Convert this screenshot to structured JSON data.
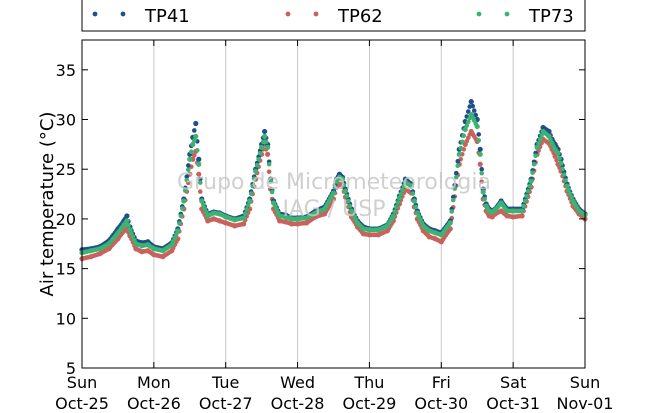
{
  "chart_data": {
    "type": "scatter",
    "title": "",
    "xlabel": "",
    "ylabel": "Air temperature (°C)",
    "ylim": [
      5,
      38
    ],
    "yticks": [
      5,
      10,
      15,
      20,
      25,
      30,
      35
    ],
    "xlim": [
      "2015-10-25 00:00",
      "2015-11-01 00:00"
    ],
    "xticks": [
      {
        "day": "Sun",
        "date": "Oct-25"
      },
      {
        "day": "Mon",
        "date": "Oct-26"
      },
      {
        "day": "Tue",
        "date": "Oct-27"
      },
      {
        "day": "Wed",
        "date": "Oct-28"
      },
      {
        "day": "Thu",
        "date": "Oct-29"
      },
      {
        "day": "Fri",
        "date": "Oct-30"
      },
      {
        "day": "Sat",
        "date": "Oct-31"
      },
      {
        "day": "Sun",
        "date": "Nov-01"
      }
    ],
    "grid": "vertical",
    "legend_position": "top",
    "watermark": [
      "Grupo de Micrometeorologia",
      "IAG / USP"
    ],
    "x_unit": "hours since 2015-10-25 00:00",
    "series": [
      {
        "name": "TP41",
        "color": "#1f4e8c",
        "x": [
          0,
          3,
          6,
          9,
          12,
          14,
          15,
          16,
          18,
          20,
          22,
          24,
          27,
          30,
          32,
          34,
          36,
          37,
          38,
          39,
          40,
          42,
          44,
          46,
          48,
          51,
          54,
          56,
          58,
          60,
          61,
          62,
          63,
          64,
          66,
          68,
          70,
          72,
          75,
          78,
          81,
          84,
          85,
          86,
          87,
          88,
          90,
          92,
          94,
          96,
          99,
          102,
          104,
          106,
          108,
          110,
          111,
          112,
          114,
          116,
          118,
          120,
          123,
          126,
          128,
          130,
          132,
          133,
          134,
          135,
          136,
          137,
          138,
          140,
          142,
          144,
          147,
          150,
          152,
          154,
          156,
          157,
          158,
          159,
          160,
          162,
          164,
          166,
          168
        ],
        "y": [
          16.9,
          17.0,
          17.2,
          17.8,
          19.0,
          19.8,
          20.3,
          19.2,
          17.8,
          17.6,
          17.7,
          17.2,
          17.0,
          17.6,
          19.0,
          22.0,
          26.5,
          28.2,
          29.6,
          26.0,
          22.0,
          20.5,
          20.7,
          20.6,
          20.3,
          20.0,
          20.3,
          22.0,
          25.0,
          27.5,
          28.8,
          27.5,
          24.0,
          21.8,
          20.5,
          20.4,
          20.1,
          20.1,
          20.2,
          20.8,
          21.2,
          22.8,
          24.0,
          24.5,
          24.2,
          23.0,
          21.0,
          19.8,
          19.2,
          19.0,
          19.0,
          19.4,
          20.5,
          22.3,
          24.0,
          23.5,
          22.0,
          20.8,
          19.5,
          19.0,
          18.8,
          18.6,
          19.8,
          27.0,
          29.8,
          31.8,
          30.0,
          27.0,
          23.0,
          21.5,
          21.0,
          20.8,
          21.0,
          21.8,
          21.0,
          21.0,
          21.0,
          24.0,
          27.5,
          29.2,
          28.8,
          28.0,
          27.5,
          27.0,
          26.0,
          23.5,
          22.0,
          21.0,
          20.5
        ]
      },
      {
        "name": "TP62",
        "color": "#c9625c",
        "x": [
          0,
          3,
          6,
          9,
          12,
          14,
          15,
          16,
          18,
          20,
          22,
          24,
          27,
          30,
          32,
          34,
          36,
          37,
          38,
          39,
          40,
          42,
          44,
          46,
          48,
          51,
          54,
          56,
          58,
          60,
          61,
          62,
          63,
          64,
          66,
          68,
          70,
          72,
          75,
          78,
          81,
          84,
          85,
          86,
          87,
          88,
          90,
          92,
          94,
          96,
          99,
          102,
          104,
          106,
          108,
          110,
          111,
          112,
          114,
          116,
          118,
          120,
          123,
          126,
          128,
          130,
          132,
          133,
          134,
          135,
          136,
          137,
          138,
          140,
          142,
          144,
          147,
          150,
          152,
          154,
          156,
          157,
          158,
          159,
          160,
          162,
          164,
          166,
          168
        ],
        "y": [
          16.0,
          16.2,
          16.5,
          17.0,
          18.0,
          18.8,
          19.0,
          18.3,
          17.0,
          16.7,
          16.8,
          16.4,
          16.2,
          16.8,
          18.0,
          21.0,
          24.5,
          26.0,
          26.8,
          24.5,
          21.0,
          19.8,
          20.0,
          19.8,
          19.6,
          19.3,
          19.5,
          21.0,
          24.0,
          26.5,
          27.5,
          26.5,
          23.0,
          21.0,
          19.8,
          19.7,
          19.5,
          19.5,
          19.6,
          20.2,
          20.5,
          22.0,
          23.2,
          23.5,
          23.3,
          22.2,
          20.2,
          19.2,
          18.5,
          18.4,
          18.4,
          18.8,
          19.8,
          21.5,
          23.0,
          22.6,
          21.2,
          20.0,
          18.8,
          18.2,
          18.0,
          17.7,
          19.0,
          25.5,
          27.5,
          28.8,
          27.8,
          25.5,
          22.0,
          20.8,
          20.3,
          20.2,
          20.5,
          20.8,
          20.3,
          20.2,
          20.3,
          23.2,
          26.5,
          28.0,
          27.6,
          27.0,
          26.3,
          25.5,
          24.8,
          22.8,
          21.3,
          20.5,
          20.0
        ]
      },
      {
        "name": "TP73",
        "color": "#3cb371",
        "x": [
          0,
          3,
          6,
          9,
          12,
          14,
          15,
          16,
          18,
          20,
          22,
          24,
          27,
          30,
          32,
          34,
          36,
          37,
          38,
          39,
          40,
          42,
          44,
          46,
          48,
          51,
          54,
          56,
          58,
          60,
          61,
          62,
          63,
          64,
          66,
          68,
          70,
          72,
          75,
          78,
          81,
          84,
          85,
          86,
          87,
          88,
          90,
          92,
          94,
          96,
          99,
          102,
          104,
          106,
          108,
          110,
          111,
          112,
          114,
          116,
          118,
          120,
          123,
          126,
          128,
          130,
          132,
          133,
          134,
          135,
          136,
          137,
          138,
          140,
          142,
          144,
          147,
          150,
          152,
          154,
          156,
          157,
          158,
          159,
          160,
          162,
          164,
          166,
          168
        ],
        "y": [
          16.6,
          16.8,
          17.0,
          17.5,
          18.6,
          19.4,
          19.8,
          18.9,
          17.5,
          17.3,
          17.4,
          17.0,
          16.8,
          17.4,
          18.8,
          21.8,
          26.0,
          27.5,
          28.3,
          25.5,
          21.8,
          20.3,
          20.6,
          20.5,
          20.2,
          19.9,
          20.1,
          21.8,
          24.8,
          27.2,
          28.3,
          27.2,
          23.8,
          21.6,
          20.3,
          20.2,
          20.0,
          20.0,
          20.1,
          20.6,
          21.0,
          22.6,
          23.8,
          24.2,
          24.0,
          22.8,
          20.8,
          19.6,
          19.0,
          18.9,
          18.9,
          19.3,
          20.3,
          22.1,
          23.7,
          23.3,
          21.8,
          20.6,
          19.3,
          18.8,
          18.6,
          18.4,
          19.6,
          26.5,
          29.0,
          30.5,
          29.3,
          26.5,
          22.7,
          21.3,
          20.8,
          20.7,
          20.9,
          21.6,
          20.8,
          20.8,
          20.8,
          23.8,
          27.2,
          28.8,
          28.3,
          27.6,
          27.0,
          26.6,
          25.6,
          23.3,
          21.8,
          20.8,
          20.4
        ]
      }
    ]
  }
}
